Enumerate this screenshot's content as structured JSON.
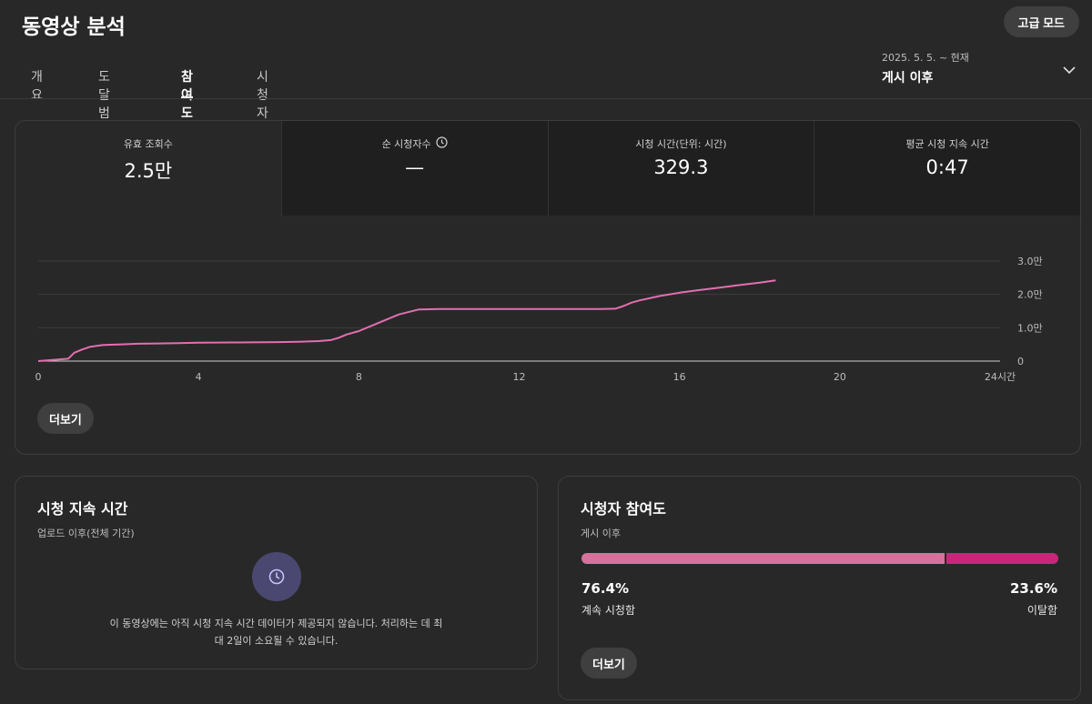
{
  "header": {
    "title": "동영상 분석",
    "advanced_mode": "고급 모드",
    "tabs": [
      {
        "label": "개요",
        "active": false
      },
      {
        "label": "도달범위",
        "active": false
      },
      {
        "label": "참여도",
        "active": true
      },
      {
        "label": "시청자층",
        "active": false
      }
    ],
    "date_range": {
      "sub": "2025. 5. 5. ~ 현재",
      "main": "게시 이후"
    }
  },
  "metrics": [
    {
      "label": "유효 조회수",
      "value": "2.5만",
      "selected": true
    },
    {
      "label": "순 시청자수",
      "value": "—",
      "info_icon": "clock-icon"
    },
    {
      "label": "시청 시간(단위: 시간)",
      "value": "329.3"
    },
    {
      "label": "평균 시청 지속 시간",
      "value": "0:47"
    }
  ],
  "chart_data": {
    "type": "line",
    "title": "",
    "xlabel": "",
    "ylabel": "",
    "x_ticks": [
      "0",
      "4",
      "8",
      "12",
      "16",
      "20",
      "24시간"
    ],
    "y_ticks": [
      "0",
      "1.0만",
      "2.0만",
      "3.0만"
    ],
    "xlim": [
      0,
      24
    ],
    "ylim": [
      0,
      30000
    ],
    "grid": true,
    "color": "#e36fb0",
    "x": [
      0,
      0.5,
      0.75,
      0.9,
      1.1,
      1.3,
      1.6,
      2,
      2.5,
      3,
      3.5,
      4,
      5,
      6,
      6.5,
      7,
      7.3,
      7.5,
      7.7,
      8,
      8.5,
      9,
      9.5,
      10,
      11,
      12,
      13,
      14,
      14.4,
      14.6,
      14.8,
      15,
      15.5,
      16,
      16.5,
      17,
      17.5,
      18,
      18.4
    ],
    "y": [
      0,
      500,
      700,
      2500,
      3500,
      4300,
      4800,
      5000,
      5200,
      5300,
      5400,
      5500,
      5600,
      5700,
      5800,
      6000,
      6300,
      7000,
      8000,
      9000,
      11500,
      14000,
      15500,
      15600,
      15600,
      15600,
      15600,
      15600,
      15700,
      16500,
      17500,
      18200,
      19500,
      20500,
      21300,
      22000,
      22800,
      23500,
      24200
    ]
  },
  "chart_more": "더보기",
  "retention": {
    "title": "시청 지속 시간",
    "subtitle": "업로드 이후(전체 기간)",
    "message": "이 동영상에는 아직 시청 지속 시간 데이터가 제공되지 않습니다. 처리하는 데 최대 2일이 소요될 수 있습니다."
  },
  "engagement": {
    "title": "시청자 참여도",
    "subtitle": "게시 이후",
    "stayed_pct": "76.4%",
    "stayed_value": 76.4,
    "stayed_label": "계속 시청함",
    "left_pct": "23.6%",
    "left_value": 23.6,
    "left_label": "이탈함",
    "more": "더보기",
    "colors": {
      "stayed": "#d6719e",
      "left": "#c7277a"
    }
  }
}
